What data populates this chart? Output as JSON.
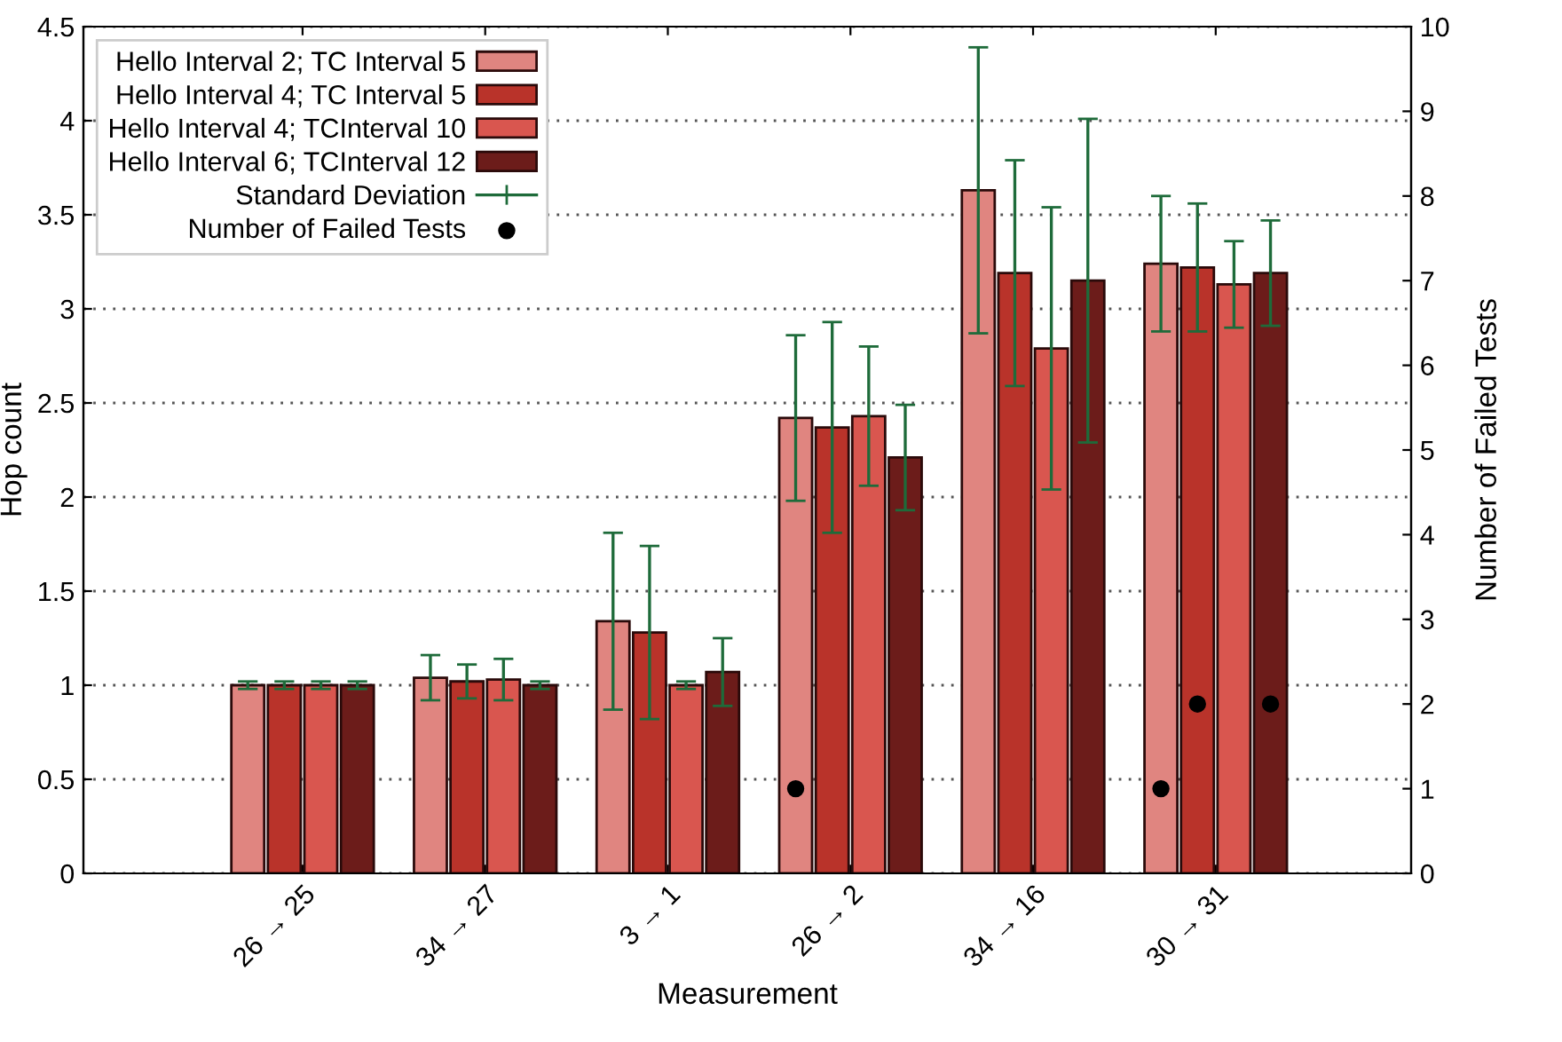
{
  "chart_data": {
    "type": "bar",
    "xlabel": "Measurement",
    "ylabel": "Hop count",
    "y2label": "Number of Failed Tests",
    "categories": [
      "26 → 25",
      "34 → 27",
      "3 → 1",
      "26 → 2",
      "34 → 16",
      "30 → 31"
    ],
    "series": [
      {
        "name": "Hello Interval 2; TC Interval 5",
        "color": "#e08580",
        "values": [
          1,
          1.04,
          1.34,
          2.42,
          3.63,
          3.24
        ],
        "errors": [
          0.02,
          0.12,
          0.47,
          0.44,
          0.76,
          0.36
        ]
      },
      {
        "name": "Hello Interval 4; TC Interval 5",
        "color": "#b9332a",
        "values": [
          1,
          1.02,
          1.28,
          2.37,
          3.19,
          3.22
        ],
        "errors": [
          0.02,
          0.09,
          0.46,
          0.56,
          0.6,
          0.34
        ]
      },
      {
        "name": "Hello Interval 4; TCInterval 10",
        "color": "#d9564f",
        "values": [
          1,
          1.03,
          1,
          2.43,
          2.79,
          3.13
        ],
        "errors": [
          0.02,
          0.11,
          0.02,
          0.37,
          0.75,
          0.23
        ]
      },
      {
        "name": "Hello Interval 6; TCInterval 12",
        "color": "#6c1c1a",
        "values": [
          1,
          1,
          1.07,
          2.21,
          3.15,
          3.19
        ],
        "errors": [
          0.02,
          0.02,
          0.18,
          0.28,
          0.86,
          0.28
        ]
      },
      {
        "type": "scatter",
        "axis": "y2",
        "name": "Number of Failed Tests",
        "color": "#000000",
        "values": [
          null,
          null,
          null,
          1,
          null,
          1
        ]
      },
      {
        "type": "scatter",
        "axis": "y2",
        "color": "#000000",
        "values": [
          null,
          null,
          null,
          null,
          null,
          2
        ]
      },
      {
        "type": "scatter",
        "axis": "y2",
        "color": "#000000",
        "values": [
          null,
          null,
          null,
          null,
          null,
          null
        ]
      },
      {
        "type": "scatter",
        "axis": "y2",
        "color": "#000000",
        "values": [
          null,
          null,
          null,
          null,
          null,
          2
        ]
      }
    ],
    "annotations": [
      "Standard Deviation"
    ],
    "ylim": [
      0,
      4.5
    ],
    "yticks": [
      0,
      0.5,
      1,
      1.5,
      2,
      2.5,
      3,
      3.5,
      4,
      4.5
    ],
    "y2lim": [
      0,
      10
    ],
    "y2ticks": [
      0,
      1,
      2,
      3,
      4,
      5,
      6,
      7,
      8,
      9,
      10
    ],
    "grid": "y",
    "legend": "top left",
    "marker": "circle"
  }
}
